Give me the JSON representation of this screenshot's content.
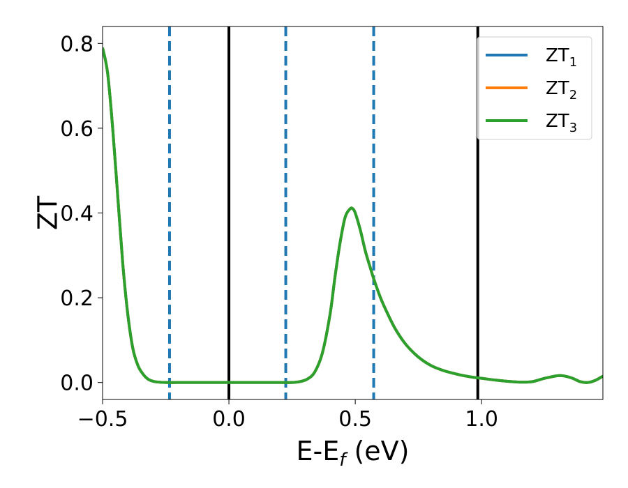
{
  "chart_data": {
    "type": "line",
    "xlabel": "E-E",
    "xlabel_sub": "f",
    "xlabel_unit": " (eV)",
    "ylabel": "ZT",
    "xlim": [
      -0.5,
      1.48
    ],
    "ylim": [
      -0.04,
      0.84
    ],
    "x_ticks": [
      {
        "value": -0.5,
        "label": "−0.5"
      },
      {
        "value": 0.0,
        "label": "0.0"
      },
      {
        "value": 0.5,
        "label": "0.5"
      },
      {
        "value": 1.0,
        "label": "1.0"
      }
    ],
    "y_ticks": [
      {
        "value": 0.0,
        "label": "0.0"
      },
      {
        "value": 0.2,
        "label": "0.2"
      },
      {
        "value": 0.4,
        "label": "0.4"
      },
      {
        "value": 0.6,
        "label": "0.6"
      },
      {
        "value": 0.8,
        "label": "0.8"
      }
    ],
    "vlines_solid": [
      0.0,
      0.985
    ],
    "vlines_dashed": [
      -0.235,
      0.225,
      0.573
    ],
    "vline_solid_color": "#000000",
    "vline_dashed_color": "#1f77b4",
    "legend_position": "upper-right",
    "series": [
      {
        "name_base": "ZT",
        "name_sub": "1",
        "color": "#1f77b4",
        "x": [
          -0.5,
          -0.48,
          -0.46,
          -0.44,
          -0.42,
          -0.4,
          -0.38,
          -0.36,
          -0.34,
          -0.32,
          -0.3,
          -0.28,
          -0.25,
          -0.2,
          -0.1,
          0.0,
          0.1,
          0.2,
          0.25,
          0.28,
          0.31,
          0.34,
          0.37,
          0.4,
          0.42,
          0.44,
          0.46,
          0.48,
          0.49,
          0.5,
          0.52,
          0.54,
          0.56,
          0.573,
          0.6,
          0.63,
          0.66,
          0.7,
          0.75,
          0.8,
          0.85,
          0.9,
          0.94,
          0.97,
          1.0,
          1.05,
          1.1,
          1.15,
          1.2,
          1.25,
          1.3,
          1.33,
          1.36,
          1.39,
          1.42,
          1.45,
          1.48
        ],
        "y": [
          0.79,
          0.73,
          0.6,
          0.44,
          0.28,
          0.16,
          0.08,
          0.04,
          0.02,
          0.008,
          0.003,
          0.001,
          0.0,
          0.0,
          0.0,
          0.0,
          0.0,
          0.0,
          0.0,
          0.002,
          0.008,
          0.025,
          0.07,
          0.16,
          0.25,
          0.33,
          0.39,
          0.41,
          0.41,
          0.4,
          0.36,
          0.31,
          0.27,
          0.245,
          0.2,
          0.16,
          0.125,
          0.09,
          0.06,
          0.04,
          0.028,
          0.02,
          0.015,
          0.012,
          0.01,
          0.006,
          0.003,
          0.001,
          0.002,
          0.01,
          0.016,
          0.015,
          0.01,
          0.002,
          0.0,
          0.005,
          0.015
        ]
      },
      {
        "name_base": "ZT",
        "name_sub": "2",
        "color": "#ff7f0e",
        "x": [
          -0.5,
          -0.48,
          -0.46,
          -0.44,
          -0.42,
          -0.4,
          -0.38,
          -0.36,
          -0.34,
          -0.32,
          -0.3,
          -0.28,
          -0.25,
          -0.2,
          -0.1,
          0.0,
          0.1,
          0.2,
          0.25,
          0.28,
          0.31,
          0.34,
          0.37,
          0.4,
          0.42,
          0.44,
          0.46,
          0.48,
          0.49,
          0.5,
          0.52,
          0.54,
          0.56,
          0.573,
          0.6,
          0.63,
          0.66,
          0.7,
          0.75,
          0.8,
          0.85,
          0.9,
          0.94,
          0.97,
          1.0,
          1.05,
          1.1,
          1.15,
          1.2,
          1.25,
          1.3,
          1.33,
          1.36,
          1.39,
          1.42,
          1.45,
          1.48
        ],
        "y": [
          0.79,
          0.73,
          0.6,
          0.44,
          0.28,
          0.16,
          0.08,
          0.04,
          0.02,
          0.008,
          0.003,
          0.001,
          0.0,
          0.0,
          0.0,
          0.0,
          0.0,
          0.0,
          0.0,
          0.002,
          0.008,
          0.025,
          0.07,
          0.16,
          0.25,
          0.33,
          0.39,
          0.41,
          0.41,
          0.4,
          0.36,
          0.31,
          0.27,
          0.245,
          0.2,
          0.16,
          0.125,
          0.09,
          0.06,
          0.04,
          0.028,
          0.02,
          0.015,
          0.012,
          0.01,
          0.006,
          0.003,
          0.001,
          0.002,
          0.01,
          0.016,
          0.015,
          0.01,
          0.002,
          0.0,
          0.005,
          0.015
        ]
      },
      {
        "name_base": "ZT",
        "name_sub": "3",
        "color": "#2ca02c",
        "x": [
          -0.5,
          -0.48,
          -0.46,
          -0.44,
          -0.42,
          -0.4,
          -0.38,
          -0.36,
          -0.34,
          -0.32,
          -0.3,
          -0.28,
          -0.25,
          -0.2,
          -0.1,
          0.0,
          0.1,
          0.2,
          0.25,
          0.28,
          0.31,
          0.34,
          0.37,
          0.4,
          0.42,
          0.44,
          0.46,
          0.48,
          0.49,
          0.5,
          0.52,
          0.54,
          0.56,
          0.573,
          0.6,
          0.63,
          0.66,
          0.7,
          0.75,
          0.8,
          0.85,
          0.9,
          0.94,
          0.97,
          1.0,
          1.05,
          1.1,
          1.15,
          1.2,
          1.25,
          1.3,
          1.33,
          1.36,
          1.39,
          1.42,
          1.45,
          1.48
        ],
        "y": [
          0.79,
          0.73,
          0.6,
          0.44,
          0.28,
          0.16,
          0.08,
          0.04,
          0.02,
          0.008,
          0.003,
          0.001,
          0.0,
          0.0,
          0.0,
          0.0,
          0.0,
          0.0,
          0.0,
          0.002,
          0.008,
          0.025,
          0.07,
          0.16,
          0.25,
          0.33,
          0.39,
          0.41,
          0.41,
          0.4,
          0.36,
          0.31,
          0.27,
          0.245,
          0.2,
          0.16,
          0.125,
          0.09,
          0.06,
          0.04,
          0.028,
          0.02,
          0.015,
          0.012,
          0.01,
          0.006,
          0.003,
          0.001,
          0.002,
          0.01,
          0.016,
          0.015,
          0.01,
          0.002,
          0.0,
          0.005,
          0.015
        ]
      }
    ]
  }
}
